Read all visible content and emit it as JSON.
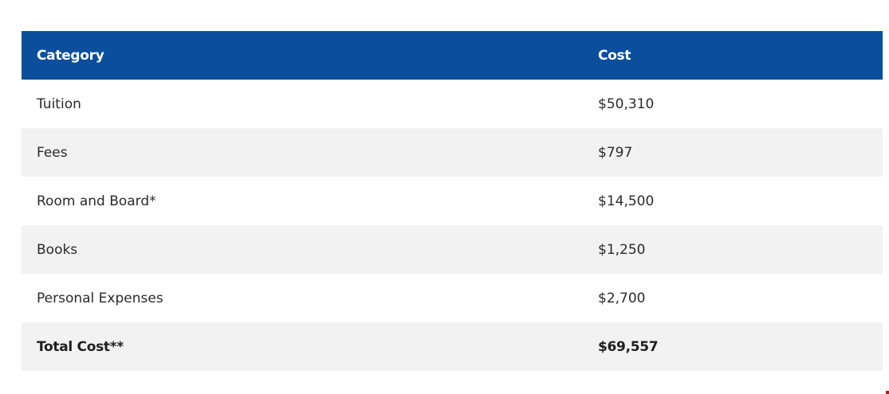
{
  "table": {
    "headers": [
      "Category",
      "Cost"
    ],
    "rows": [
      {
        "category": "Tuition",
        "cost": "$50,310"
      },
      {
        "category": "Fees",
        "cost": "$797"
      },
      {
        "category": "Room and Board*",
        "cost": "$14,500"
      },
      {
        "category": "Books",
        "cost": "$1,250"
      },
      {
        "category": "Personal Expenses",
        "cost": "$2,700"
      },
      {
        "category": "Total Cost**",
        "cost": "$69,557"
      }
    ]
  },
  "colors": {
    "header_bg": "#0b4f9c",
    "row_alt_bg": "#f2f2f2"
  }
}
